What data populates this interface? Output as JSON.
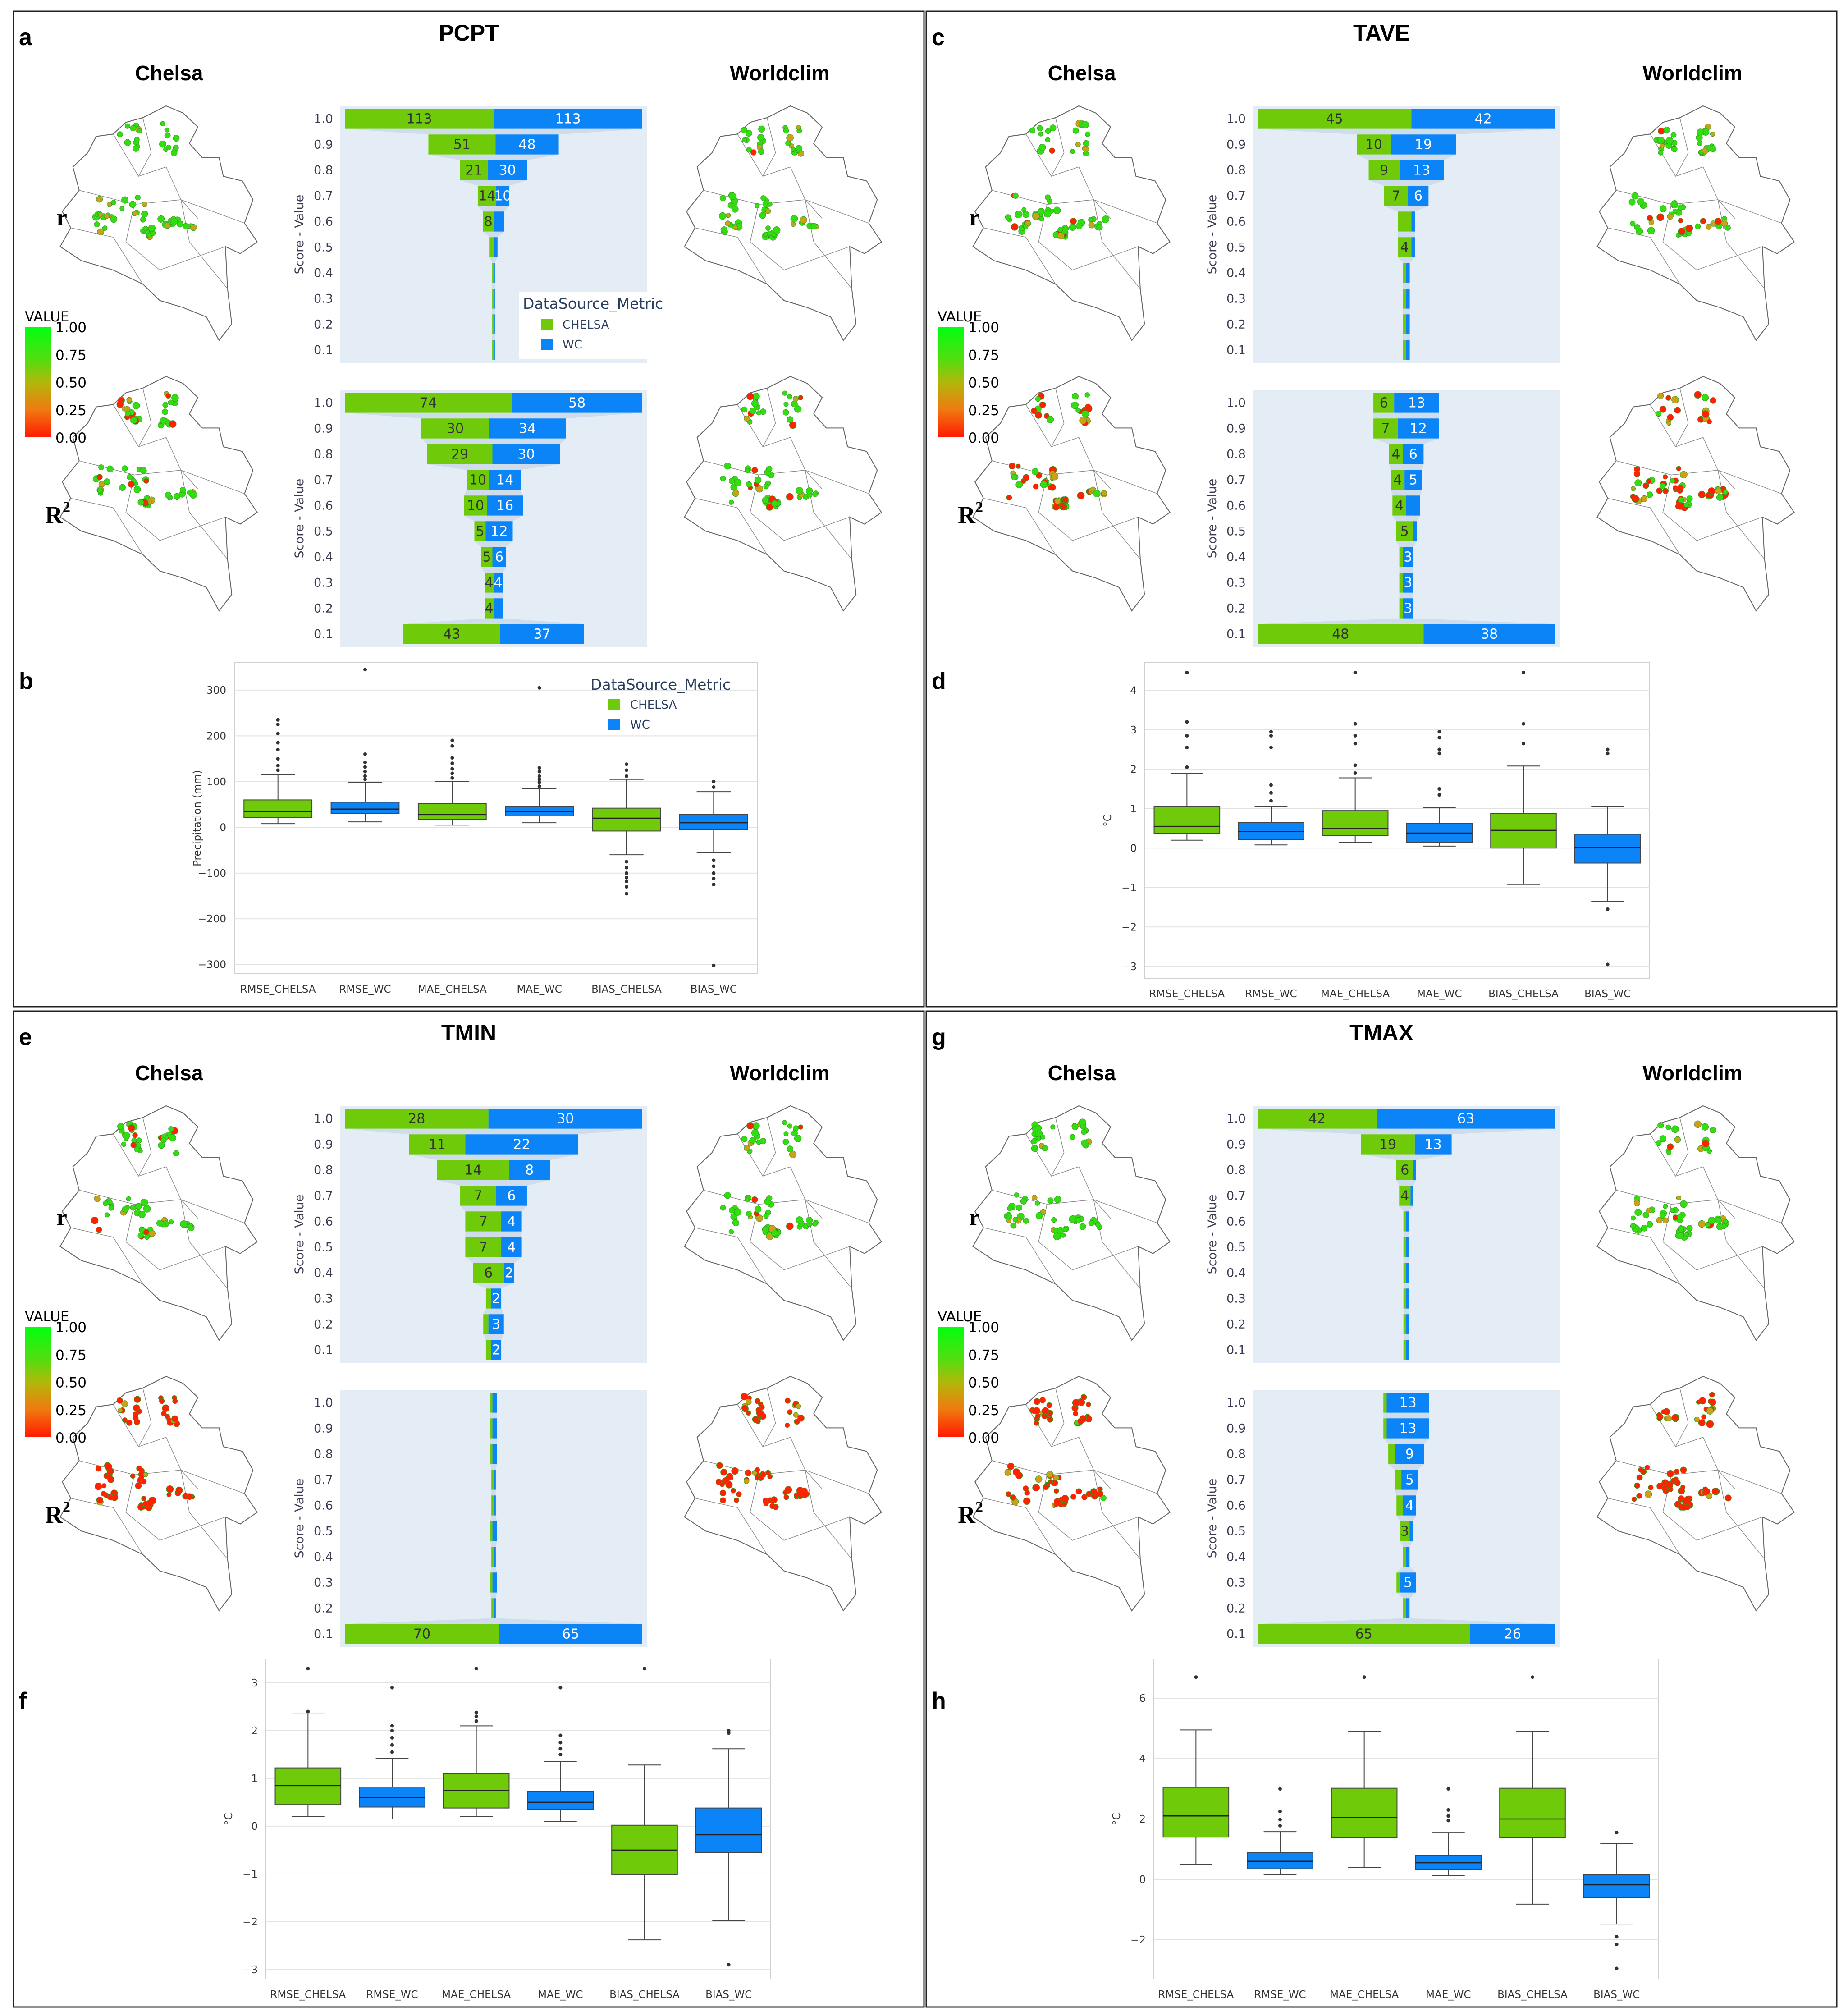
{
  "colors": {
    "chelsa": "#6fcb0a",
    "wc": "#0b84f7",
    "funnel_bg": "#e4ecf6",
    "colorbar": [
      "#ff1a00",
      "#f0a030",
      "#c8c800",
      "#33e81a",
      "#00ff10"
    ]
  },
  "panels": [
    {
      "key": "a",
      "letter": "a",
      "title": "PCPT",
      "chelsa_label": "Chelsa",
      "worldclim_label": "Worldclim",
      "row_r": "r",
      "row_r2": "R",
      "superscript": "2",
      "colorbar": {
        "title": "VALUE",
        "ticks": [
          "1.00",
          "0.75",
          "0.50",
          "0.25",
          "0.00"
        ]
      },
      "funnel_r": {
        "axis_title": "Score - Value",
        "levels": [
          "1.0",
          "0.9",
          "0.8",
          "0.7",
          "0.6",
          "0.5",
          "0.4",
          "0.3",
          "0.2",
          "0.1"
        ],
        "chelsa": [
          113,
          51,
          21,
          14,
          8,
          3,
          1,
          1,
          1,
          1
        ],
        "wc": [
          113,
          48,
          30,
          10,
          8,
          3,
          1,
          1,
          1,
          1
        ],
        "labels_chelsa": [
          "113",
          "51",
          "21",
          "14",
          "8",
          "",
          "",
          "",
          "",
          ""
        ],
        "labels_wc": [
          "113",
          "48",
          "30",
          "10",
          "",
          "",
          "",
          "",
          "",
          ""
        ]
      },
      "funnel_r2": {
        "axis_title": "Score - Value",
        "levels": [
          "1.0",
          "0.9",
          "0.8",
          "0.7",
          "0.6",
          "0.5",
          "0.4",
          "0.3",
          "0.2",
          "0.1"
        ],
        "chelsa": [
          74,
          30,
          29,
          10,
          10,
          5,
          5,
          4,
          4,
          43
        ],
        "wc": [
          58,
          34,
          30,
          14,
          16,
          12,
          6,
          4,
          4,
          37
        ],
        "labels_chelsa": [
          "74",
          "30",
          "29",
          "10",
          "10",
          "5",
          "5",
          "4",
          "4",
          "43"
        ],
        "labels_wc": [
          "58",
          "34",
          "30",
          "14",
          "16",
          "12",
          "6",
          "4",
          "",
          "37"
        ]
      },
      "legend": {
        "title": "DataSource_Metric",
        "items": [
          "CHELSA",
          "WC"
        ]
      }
    },
    {
      "key": "c",
      "letter": "c",
      "title": "TAVE",
      "chelsa_label": "Chelsa",
      "worldclim_label": "Worldclim",
      "row_r": "r",
      "row_r2": "R",
      "superscript": "2",
      "colorbar": {
        "title": "VALUE",
        "ticks": [
          "1.00",
          "0.75",
          "0.50",
          "0.25",
          "0.00"
        ]
      },
      "funnel_r": {
        "axis_title": "Score - Value",
        "levels": [
          "1.0",
          "0.9",
          "0.8",
          "0.7",
          "0.6",
          "0.5",
          "0.4",
          "0.3",
          "0.2",
          "0.1"
        ],
        "chelsa": [
          45,
          10,
          9,
          7,
          4,
          4,
          1,
          1,
          1,
          1
        ],
        "wc": [
          42,
          19,
          13,
          6,
          1,
          1,
          1,
          1,
          1,
          1
        ],
        "labels_chelsa": [
          "45",
          "10",
          "9",
          "7",
          "",
          "4",
          "",
          "",
          "",
          ""
        ],
        "labels_wc": [
          "42",
          "19",
          "13",
          "6",
          "",
          "",
          "",
          "",
          "",
          ""
        ]
      },
      "funnel_r2": {
        "axis_title": "Score - Value",
        "levels": [
          "1.0",
          "0.9",
          "0.8",
          "0.7",
          "0.6",
          "0.5",
          "0.4",
          "0.3",
          "0.2",
          "0.1"
        ],
        "chelsa": [
          6,
          7,
          4,
          4,
          4,
          5,
          1,
          1,
          1,
          48
        ],
        "wc": [
          13,
          12,
          6,
          5,
          4,
          1,
          3,
          3,
          3,
          38
        ],
        "labels_chelsa": [
          "6",
          "7",
          "4",
          "4",
          "4",
          "5",
          "",
          "",
          "",
          "48"
        ],
        "labels_wc": [
          "13",
          "12",
          "6",
          "5",
          "",
          "",
          "3",
          "3",
          "3",
          "38"
        ]
      }
    },
    {
      "key": "e",
      "letter": "e",
      "title": "TMIN",
      "chelsa_label": "Chelsa",
      "worldclim_label": "Worldclim",
      "row_r": "r",
      "row_r2": "R",
      "superscript": "2",
      "colorbar": {
        "title": "VALUE",
        "ticks": [
          "1.00",
          "0.75",
          "0.50",
          "0.25",
          "0.00"
        ]
      },
      "funnel_r": {
        "axis_title": "Score - Value",
        "levels": [
          "1.0",
          "0.9",
          "0.8",
          "0.7",
          "0.6",
          "0.5",
          "0.4",
          "0.3",
          "0.2",
          "0.1"
        ],
        "chelsa": [
          28,
          11,
          14,
          7,
          7,
          7,
          6,
          1,
          1,
          1
        ],
        "wc": [
          30,
          22,
          8,
          6,
          4,
          4,
          2,
          2,
          3,
          2
        ],
        "labels_chelsa": [
          "28",
          "11",
          "14",
          "7",
          "7",
          "7",
          "6",
          "",
          "",
          ""
        ],
        "labels_wc": [
          "30",
          "22",
          "8",
          "6",
          "4",
          "4",
          "2",
          "2",
          "3",
          "2"
        ]
      },
      "funnel_r2": {
        "axis_title": "Score - Value",
        "levels": [
          "1.0",
          "0.9",
          "0.8",
          "0.7",
          "0.6",
          "0.5",
          "0.4",
          "0.3",
          "0.2",
          "0.1"
        ],
        "chelsa": [
          1,
          1,
          1,
          1,
          1,
          1,
          1,
          1,
          1,
          70
        ],
        "wc": [
          2,
          2,
          2,
          1,
          1,
          2,
          1,
          2,
          1,
          65
        ],
        "labels_chelsa": [
          "",
          "",
          "",
          "",
          "",
          "",
          "",
          "",
          "",
          "70"
        ],
        "labels_wc": [
          "",
          "",
          "",
          "",
          "",
          "",
          "",
          "",
          "",
          "65"
        ]
      }
    },
    {
      "key": "g",
      "letter": "g",
      "title": "TMAX",
      "chelsa_label": "Chelsa",
      "worldclim_label": "Worldclim",
      "row_r": "r",
      "row_r2": "R",
      "superscript": "2",
      "colorbar": {
        "title": "VALUE",
        "ticks": [
          "1.00",
          "0.75",
          "0.50",
          "0.25",
          "0.00"
        ]
      },
      "funnel_r": {
        "axis_title": "Score - Value",
        "levels": [
          "1.0",
          "0.9",
          "0.8",
          "0.7",
          "0.6",
          "0.5",
          "0.4",
          "0.3",
          "0.2",
          "0.1"
        ],
        "chelsa": [
          42,
          19,
          6,
          4,
          1,
          1,
          1,
          1,
          1,
          1
        ],
        "wc": [
          63,
          13,
          1,
          1,
          1,
          1,
          1,
          1,
          1,
          1
        ],
        "labels_chelsa": [
          "42",
          "19",
          "6",
          "4",
          "",
          "",
          "",
          "",
          "",
          ""
        ],
        "labels_wc": [
          "63",
          "13",
          "",
          "",
          "",
          "",
          "",
          "",
          "",
          ""
        ]
      },
      "funnel_r2": {
        "axis_title": "Score - Value",
        "levels": [
          "1.0",
          "0.9",
          "0.8",
          "0.7",
          "0.6",
          "0.5",
          "0.4",
          "0.3",
          "0.2",
          "0.1"
        ],
        "chelsa": [
          1,
          1,
          2,
          2,
          2,
          3,
          1,
          1,
          1,
          65
        ],
        "wc": [
          13,
          13,
          9,
          5,
          4,
          1,
          1,
          5,
          1,
          26
        ],
        "labels_chelsa": [
          "",
          "",
          "",
          "",
          "",
          "3",
          "",
          "",
          "",
          "65"
        ],
        "labels_wc": [
          "13",
          "13",
          "9",
          "5",
          "4",
          "",
          "",
          "5",
          "",
          "26"
        ]
      }
    }
  ],
  "boxplots": [
    {
      "key": "b",
      "letter": "b",
      "ylabel": "Precipitation (mm)",
      "ylim": [
        -320,
        360
      ],
      "ticks": [
        300,
        200,
        100,
        0,
        -100,
        -200,
        -300
      ],
      "categories": [
        "RMSE_CHELSA",
        "RMSE_WC",
        "MAE_CHELSA",
        "MAE_WC",
        "BIAS_CHELSA",
        "BIAS_WC"
      ],
      "legend": {
        "title": "DataSource_Metric",
        "items": [
          "CHELSA",
          "WC"
        ]
      },
      "boxes": [
        {
          "whislo": 8,
          "q1": 22,
          "med": 35,
          "q3": 60,
          "whishi": 115,
          "fliers": [
            125,
            135,
            150,
            170,
            185,
            205,
            225,
            235
          ]
        },
        {
          "whislo": 12,
          "q1": 30,
          "med": 40,
          "q3": 55,
          "whishi": 98,
          "fliers": [
            105,
            112,
            122,
            132,
            142,
            160,
            345
          ]
        },
        {
          "whislo": 5,
          "q1": 18,
          "med": 28,
          "q3": 52,
          "whishi": 100,
          "fliers": [
            108,
            118,
            128,
            140,
            152,
            178,
            190
          ]
        },
        {
          "whislo": 10,
          "q1": 25,
          "med": 35,
          "q3": 45,
          "whishi": 85,
          "fliers": [
            90,
            98,
            105,
            112,
            122,
            130,
            305
          ]
        },
        {
          "whislo": -60,
          "q1": -8,
          "med": 20,
          "q3": 42,
          "whishi": 105,
          "fliers": [
            -75,
            -88,
            -100,
            -110,
            -118,
            -130,
            -145,
            112,
            125,
            138
          ]
        },
        {
          "whislo": -55,
          "q1": -5,
          "med": 10,
          "q3": 28,
          "whishi": 78,
          "fliers": [
            -72,
            -85,
            -100,
            -112,
            -125,
            -302,
            88,
            100
          ]
        }
      ]
    },
    {
      "key": "d",
      "letter": "d",
      "ylabel": "°C",
      "ylim": [
        -3.3,
        4.7
      ],
      "ticks": [
        4,
        3,
        2,
        1,
        0,
        -1,
        -2,
        -3
      ],
      "categories": [
        "RMSE_CHELSA",
        "RMSE_WC",
        "MAE_CHELSA",
        "MAE_WC",
        "BIAS_CHELSA",
        "BIAS_WC"
      ],
      "boxes": [
        {
          "whislo": 0.2,
          "q1": 0.38,
          "med": 0.55,
          "q3": 1.05,
          "whishi": 1.9,
          "fliers": [
            2.05,
            2.55,
            2.85,
            3.2,
            4.45
          ]
        },
        {
          "whislo": 0.08,
          "q1": 0.22,
          "med": 0.42,
          "q3": 0.65,
          "whishi": 1.05,
          "fliers": [
            1.2,
            1.4,
            1.6,
            2.55,
            2.85,
            2.95
          ]
        },
        {
          "whislo": 0.15,
          "q1": 0.32,
          "med": 0.5,
          "q3": 0.95,
          "whishi": 1.78,
          "fliers": [
            1.9,
            2.1,
            2.65,
            2.85,
            3.15,
            4.45
          ]
        },
        {
          "whislo": 0.05,
          "q1": 0.15,
          "med": 0.38,
          "q3": 0.62,
          "whishi": 1.02,
          "fliers": [
            1.35,
            1.5,
            2.4,
            2.5,
            2.8,
            2.95
          ]
        },
        {
          "whislo": -0.92,
          "q1": 0.0,
          "med": 0.45,
          "q3": 0.88,
          "whishi": 2.08,
          "fliers": [
            2.65,
            3.15,
            4.45
          ]
        },
        {
          "whislo": -1.35,
          "q1": -0.38,
          "med": 0.02,
          "q3": 0.35,
          "whishi": 1.05,
          "fliers": [
            -1.55,
            -2.95,
            2.4,
            2.5
          ]
        }
      ]
    },
    {
      "key": "f",
      "letter": "f",
      "ylabel": "°C",
      "ylim": [
        -3.2,
        3.5
      ],
      "ticks": [
        3,
        2,
        1,
        0,
        -1,
        -2,
        -3
      ],
      "categories": [
        "RMSE_CHELSA",
        "RMSE_WC",
        "MAE_CHELSA",
        "MAE_WC",
        "BIAS_CHELSA",
        "BIAS_WC"
      ],
      "boxes": [
        {
          "whislo": 0.2,
          "q1": 0.45,
          "med": 0.85,
          "q3": 1.22,
          "whishi": 2.35,
          "fliers": [
            2.4,
            3.3
          ]
        },
        {
          "whislo": 0.15,
          "q1": 0.4,
          "med": 0.6,
          "q3": 0.82,
          "whishi": 1.42,
          "fliers": [
            1.55,
            1.7,
            1.85,
            2.0,
            2.1,
            2.9
          ]
        },
        {
          "whislo": 0.2,
          "q1": 0.38,
          "med": 0.75,
          "q3": 1.1,
          "whishi": 2.1,
          "fliers": [
            2.2,
            2.3,
            2.38,
            3.3
          ]
        },
        {
          "whislo": 0.1,
          "q1": 0.35,
          "med": 0.5,
          "q3": 0.72,
          "whishi": 1.35,
          "fliers": [
            1.5,
            1.62,
            1.75,
            1.9,
            2.9
          ]
        },
        {
          "whislo": -2.38,
          "q1": -1.02,
          "med": -0.5,
          "q3": 0.02,
          "whishi": 1.28,
          "fliers": [
            3.3
          ]
        },
        {
          "whislo": -1.98,
          "q1": -0.55,
          "med": -0.18,
          "q3": 0.38,
          "whishi": 1.62,
          "fliers": [
            1.95,
            2.0,
            -2.9
          ]
        }
      ]
    },
    {
      "key": "h",
      "letter": "h",
      "ylabel": "°C",
      "ylim": [
        -3.3,
        7.3
      ],
      "ticks": [
        6,
        4,
        2,
        0,
        -2
      ],
      "categories": [
        "RMSE_CHELSA",
        "RMSE_WC",
        "MAE_CHELSA",
        "MAE_WC",
        "BIAS_CHELSA",
        "BIAS_WC"
      ],
      "boxes": [
        {
          "whislo": 0.5,
          "q1": 1.4,
          "med": 2.1,
          "q3": 3.05,
          "whishi": 4.95,
          "fliers": [
            6.7
          ]
        },
        {
          "whislo": 0.15,
          "q1": 0.35,
          "med": 0.6,
          "q3": 0.88,
          "whishi": 1.58,
          "fliers": [
            1.78,
            1.98,
            2.25,
            3.0
          ]
        },
        {
          "whislo": 0.4,
          "q1": 1.38,
          "med": 2.05,
          "q3": 3.02,
          "whishi": 4.9,
          "fliers": [
            6.7
          ]
        },
        {
          "whislo": 0.12,
          "q1": 0.32,
          "med": 0.55,
          "q3": 0.8,
          "whishi": 1.55,
          "fliers": [
            1.95,
            2.1,
            2.3,
            3.0
          ]
        },
        {
          "whislo": -0.82,
          "q1": 1.38,
          "med": 2.0,
          "q3": 3.02,
          "whishi": 4.9,
          "fliers": [
            6.7
          ]
        },
        {
          "whislo": -1.48,
          "q1": -0.6,
          "med": -0.18,
          "q3": 0.15,
          "whishi": 1.18,
          "fliers": [
            1.55,
            -1.9,
            -2.15,
            -2.95
          ]
        }
      ]
    }
  ]
}
